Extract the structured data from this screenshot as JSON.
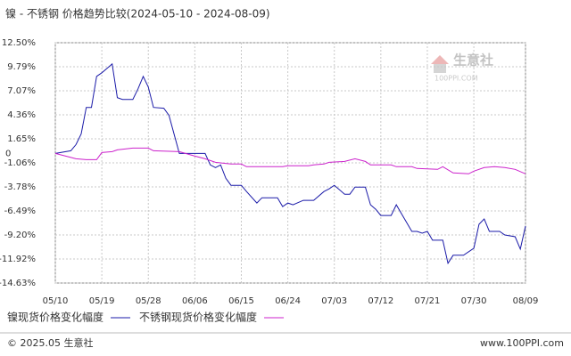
{
  "chart_data": {
    "type": "line",
    "title": "镍 - 不锈钢 价格趋势比较(2024-05-10 - 2024-08-09)",
    "xlim": [
      "05/10",
      "08/09"
    ],
    "xticks": [
      "05/10",
      "05/19",
      "05/28",
      "06/06",
      "06/15",
      "06/24",
      "07/03",
      "07/12",
      "07/21",
      "07/30",
      "08/09"
    ],
    "ylim": [
      -14.63,
      12.5
    ],
    "yticks": [
      {
        "value": 12.5,
        "label": "12.50%"
      },
      {
        "value": 9.79,
        "label": "9.79%"
      },
      {
        "value": 7.07,
        "label": "7.07%"
      },
      {
        "value": 4.36,
        "label": "4.36%"
      },
      {
        "value": 1.65,
        "label": "1.65%"
      },
      {
        "value": -1.06,
        "label": "-1.06%"
      },
      {
        "value": -3.78,
        "label": "-3.78%"
      },
      {
        "value": -6.49,
        "label": "-6.49%"
      },
      {
        "value": -9.2,
        "label": "-9.20%"
      },
      {
        "value": -11.92,
        "label": "-11.92%"
      },
      {
        "value": -14.63,
        "label": "-14.63%"
      }
    ],
    "baseline": 0,
    "grid": true,
    "series": [
      {
        "name": "镍现货价格变化幅度",
        "color": "#1a1aa8",
        "x": [
          "05/10",
          "05/13",
          "05/14",
          "05/15",
          "05/16",
          "05/17",
          "05/18",
          "05/19",
          "05/20",
          "05/21",
          "05/22",
          "05/23",
          "05/25",
          "05/26",
          "05/27",
          "05/28",
          "05/29",
          "05/31",
          "06/01",
          "06/03",
          "06/05",
          "06/08",
          "06/09",
          "06/10",
          "06/11",
          "06/12",
          "06/13",
          "06/15",
          "06/16",
          "06/18",
          "06/19",
          "06/22",
          "06/23",
          "06/24",
          "06/25",
          "06/27",
          "06/29",
          "07/01",
          "07/02",
          "07/03",
          "07/05",
          "07/06",
          "07/07",
          "07/09",
          "07/10",
          "07/11",
          "07/12",
          "07/14",
          "07/15",
          "07/16",
          "07/18",
          "07/19",
          "07/20",
          "07/21",
          "07/22",
          "07/24",
          "07/25",
          "07/26",
          "07/28",
          "07/30",
          "07/31",
          "08/01",
          "08/02",
          "08/04",
          "08/05",
          "08/07",
          "08/08",
          "08/09"
        ],
        "values": [
          0,
          0.3,
          1.0,
          2.2,
          5.2,
          5.2,
          8.7,
          9.1,
          9.6,
          10.1,
          6.3,
          6.1,
          6.1,
          7.3,
          8.7,
          7.5,
          5.2,
          5.1,
          4.3,
          0,
          0,
          0,
          -1.3,
          -1.6,
          -1.3,
          -2.8,
          -3.6,
          -3.6,
          -4.3,
          -5.6,
          -5.0,
          -5.0,
          -6.0,
          -5.6,
          -5.8,
          -5.3,
          -5.3,
          -4.3,
          -4.0,
          -3.6,
          -4.6,
          -4.6,
          -3.8,
          -3.8,
          -5.8,
          -6.3,
          -7.0,
          -7.0,
          -5.8,
          -6.8,
          -8.8,
          -8.8,
          -9.0,
          -8.8,
          -9.8,
          -9.8,
          -12.4,
          -11.5,
          -11.5,
          -10.7,
          -8.0,
          -7.4,
          -8.8,
          -8.8,
          -9.2,
          -9.4,
          -10.8,
          -8.2
        ]
      },
      {
        "name": "不锈钢现货价格变化幅度",
        "color": "#cc22cc",
        "x": [
          "05/10",
          "05/14",
          "05/16",
          "05/18",
          "05/19",
          "05/21",
          "05/22",
          "05/25",
          "05/28",
          "05/29",
          "06/03",
          "06/06",
          "06/08",
          "06/10",
          "06/13",
          "06/15",
          "06/16",
          "06/23",
          "06/24",
          "06/28",
          "06/29",
          "07/01",
          "07/02",
          "07/05",
          "07/07",
          "07/09",
          "07/10",
          "07/14",
          "07/15",
          "07/18",
          "07/19",
          "07/23",
          "07/24",
          "07/26",
          "07/29",
          "07/30",
          "08/01",
          "08/03",
          "08/05",
          "08/07",
          "08/09"
        ],
        "values": [
          0,
          -0.6,
          -0.7,
          -0.7,
          0.1,
          0.2,
          0.4,
          0.6,
          0.6,
          0.3,
          0.2,
          -0.3,
          -0.6,
          -1.0,
          -1.2,
          -1.2,
          -1.5,
          -1.5,
          -1.4,
          -1.4,
          -1.3,
          -1.2,
          -1.0,
          -0.9,
          -0.6,
          -0.9,
          -1.3,
          -1.3,
          -1.5,
          -1.5,
          -1.7,
          -1.8,
          -1.5,
          -2.2,
          -2.3,
          -2.0,
          -1.6,
          -1.5,
          -1.6,
          -1.8,
          -2.3
        ]
      }
    ]
  },
  "watermark": {
    "name": "生意社",
    "site": "100PPI.COM"
  },
  "footer": {
    "copyright": "© 2025.05 生意社",
    "url": "www.100PPI.com"
  }
}
